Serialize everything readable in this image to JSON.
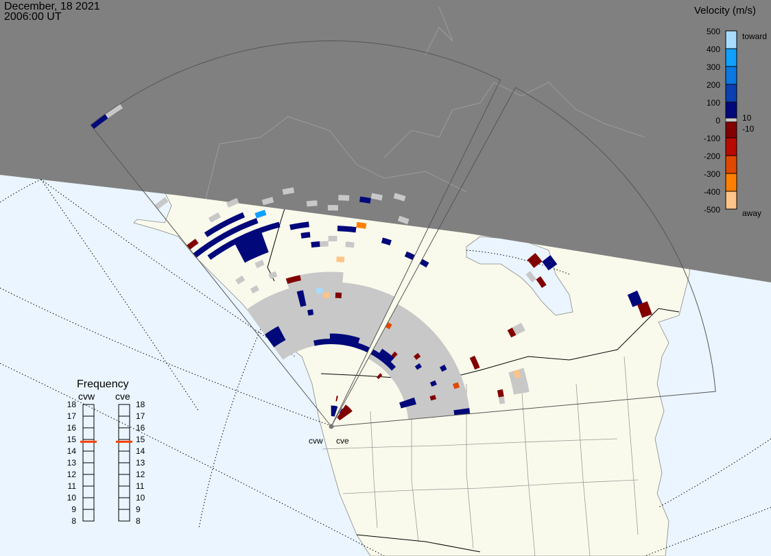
{
  "header": {
    "date": "December, 18 2021",
    "time": "2006:00 UT"
  },
  "colors": {
    "night": "#808080",
    "land": "#fafaec",
    "ocean": "#eaf5ff",
    "ground_scatter": "#c8c8c8",
    "frequency_marker": "#ff4000"
  },
  "legend": {
    "title": "Velocity (m/s)",
    "ticks": [
      "500",
      "400",
      "300",
      "200",
      "100",
      "0",
      "-100",
      "-200",
      "-300",
      "-400",
      "-500"
    ],
    "toward_label": "toward",
    "away_label": "away",
    "plus_threshold": "10",
    "minus_threshold": "-10",
    "bands": [
      {
        "min": 400,
        "max": 500,
        "color": "#a8dcff"
      },
      {
        "min": 300,
        "max": 400,
        "color": "#10a0ff"
      },
      {
        "min": 200,
        "max": 300,
        "color": "#0a78e0"
      },
      {
        "min": 100,
        "max": 200,
        "color": "#0a40b0"
      },
      {
        "min": 10,
        "max": 100,
        "color": "#00087a"
      },
      {
        "min": -100,
        "max": -10,
        "color": "#820000"
      },
      {
        "min": -200,
        "max": -100,
        "color": "#b80a00"
      },
      {
        "min": -300,
        "max": -200,
        "color": "#e04800"
      },
      {
        "min": -400,
        "max": -300,
        "color": "#ff8000"
      },
      {
        "min": -500,
        "max": -400,
        "color": "#ffc488"
      }
    ]
  },
  "frequency": {
    "title": "Frequency",
    "unit_ticks": [
      "18",
      "17",
      "16",
      "15",
      "14",
      "13",
      "12",
      "11",
      "10",
      "9",
      "8"
    ],
    "radars": [
      {
        "name": "cvw",
        "value_mhz": 14.8
      },
      {
        "name": "cve",
        "value_mhz": 14.8
      }
    ]
  },
  "sites": [
    {
      "name": "cvw"
    },
    {
      "name": "cve"
    }
  ],
  "ground_scatter_regions": [
    {
      "radar": "cvw",
      "beams": [
        1,
        23
      ],
      "gates": [
        16,
        27
      ]
    },
    {
      "radar": "cvw",
      "beams": [
        8,
        15
      ],
      "gates": [
        27,
        29
      ]
    },
    {
      "radar": "cve",
      "beams": [
        0,
        23
      ],
      "gates": [
        15,
        26
      ]
    },
    {
      "radar": "cve",
      "beams": [
        14,
        14
      ],
      "gates": [
        40,
        41
      ]
    },
    {
      "radar": "cve",
      "beams": [
        19,
        21
      ],
      "gates": [
        36,
        38
      ]
    }
  ],
  "ground_scatter_cells": [
    [
      "cvw",
      3,
      46
    ],
    [
      "cvw",
      5,
      47
    ],
    [
      "cvw",
      8,
      45
    ],
    [
      "cvw",
      10,
      46
    ],
    [
      "cvw",
      12,
      43
    ],
    [
      "cvw",
      14,
      42
    ],
    [
      "cvw",
      15,
      44
    ],
    [
      "cvw",
      18,
      45
    ],
    [
      "cvw",
      20,
      46
    ],
    [
      "cvw",
      21,
      42
    ],
    [
      "cvw",
      0,
      54
    ],
    [
      "cvw",
      2,
      33
    ],
    [
      "cvw",
      3,
      30
    ],
    [
      "cvw",
      5,
      34
    ],
    [
      "cvw",
      6,
      31
    ],
    [
      "cvw",
      13,
      35
    ],
    [
      "cvw",
      14,
      36
    ],
    [
      "cvw",
      16,
      35
    ],
    [
      "cvw",
      1,
      74
    ],
    [
      "cve",
      22,
      33
    ],
    [
      "cve",
      10,
      48
    ]
  ],
  "ionospheric_scatter": [
    {
      "radar": "cvw",
      "beams": [
        1,
        8
      ],
      "gates": [
        40,
        40
      ],
      "velocity": 60
    },
    {
      "radar": "cvw",
      "beams": [
        0,
        6
      ],
      "gates": [
        42,
        42
      ],
      "velocity": 50
    },
    {
      "radar": "cvw",
      "beams": [
        2,
        5
      ],
      "gates": [
        44,
        44
      ],
      "velocity": 40
    },
    {
      "radar": "cvw",
      "beams": [
        4,
        6
      ],
      "gates": [
        36,
        39
      ],
      "velocity": 80
    },
    {
      "radar": "cvw",
      "beams": [
        7,
        7
      ],
      "gates": [
        43,
        43
      ],
      "velocity": 360
    },
    {
      "radar": "cvw",
      "beams": [
        0,
        0
      ],
      "gates": [
        44,
        44
      ],
      "velocity": -60
    },
    {
      "radar": "cvw",
      "beams": [
        0,
        0
      ],
      "gates": [
        74,
        74
      ],
      "velocity": 60
    },
    {
      "radar": "cvw",
      "beams": [
        10,
        11
      ],
      "gates": [
        39,
        39
      ],
      "velocity": 50
    },
    {
      "radar": "cvw",
      "beams": [
        11,
        11
      ],
      "gates": [
        37,
        37
      ],
      "velocity": 50
    },
    {
      "radar": "cvw",
      "beams": [
        12,
        12
      ],
      "gates": [
        35,
        35
      ],
      "velocity": 40
    },
    {
      "radar": "cvw",
      "beams": [
        17,
        17
      ],
      "gates": [
        44,
        44
      ],
      "velocity": 70
    },
    {
      "radar": "cvw",
      "beams": [
        17,
        17
      ],
      "gates": [
        39,
        39
      ],
      "velocity": -350
    },
    {
      "radar": "cvw",
      "beams": [
        15,
        16
      ],
      "gates": [
        38,
        38
      ],
      "velocity": 50
    },
    {
      "radar": "cvw",
      "beams": [
        20,
        20
      ],
      "gates": [
        37,
        37
      ],
      "velocity": 60
    },
    {
      "radar": "cvw",
      "beams": [
        15,
        15
      ],
      "gates": [
        32,
        32
      ],
      "velocity": -470
    },
    {
      "radar": "cvw",
      "beams": [
        23,
        23
      ],
      "gates": [
        36,
        36
      ],
      "velocity": 70
    },
    {
      "radar": "cvw",
      "beams": [
        8,
        9
      ],
      "gates": [
        29,
        29
      ],
      "velocity": -80
    },
    {
      "radar": "cvw",
      "beams": [
        12,
        12
      ],
      "gates": [
        26,
        26
      ],
      "velocity": 420
    },
    {
      "radar": "cvw",
      "beams": [
        13,
        13
      ],
      "gates": [
        25,
        25
      ],
      "velocity": -480
    },
    {
      "radar": "cvw",
      "beams": [
        15,
        15
      ],
      "gates": [
        25,
        25
      ],
      "velocity": -70
    },
    {
      "radar": "cvw",
      "beams": [
        9,
        9
      ],
      "gates": [
        24,
        26
      ],
      "velocity": 60
    },
    {
      "radar": "cvw",
      "beams": [
        10,
        10
      ],
      "gates": [
        22,
        22
      ],
      "velocity": 60
    },
    {
      "radar": "cvw",
      "beams": [
        1,
        3
      ],
      "gates": [
        19,
        21
      ],
      "velocity": 50
    },
    {
      "radar": "cvw",
      "beams": [
        10,
        23
      ],
      "gates": [
        16,
        16
      ],
      "velocity": 70
    },
    {
      "radar": "cvw",
      "beams": [
        14,
        20
      ],
      "gates": [
        17,
        17
      ],
      "velocity": 60
    },
    {
      "radar": "cvw",
      "beams": [
        14,
        20
      ],
      "gates": [
        2,
        3
      ],
      "velocity": 80
    },
    {
      "radar": "cvw",
      "beams": [
        18,
        18
      ],
      "gates": [
        5,
        5
      ],
      "velocity": -60
    },
    {
      "radar": "cve",
      "beams": [
        0,
        0
      ],
      "gates": [
        36,
        36
      ],
      "velocity": 60
    },
    {
      "radar": "cve",
      "beams": [
        9,
        9
      ],
      "gates": [
        50,
        51
      ],
      "velocity": -90
    },
    {
      "radar": "cve",
      "beams": [
        10,
        10
      ],
      "gates": [
        52,
        53
      ],
      "velocity": 60
    },
    {
      "radar": "cve",
      "beams": [
        11,
        11
      ],
      "gates": [
        49,
        49
      ],
      "velocity": -80
    },
    {
      "radar": "cve",
      "beams": [
        14,
        14
      ],
      "gates": [
        39,
        39
      ],
      "velocity": -90
    },
    {
      "radar": "cve",
      "beams": [
        16,
        16
      ],
      "gates": [
        63,
        64
      ],
      "velocity": 60
    },
    {
      "radar": "cve",
      "beams": [
        17,
        17
      ],
      "gates": [
        64,
        65
      ],
      "velocity": -90
    },
    {
      "radar": "cve",
      "beams": [
        15,
        16
      ],
      "gates": [
        30,
        30
      ],
      "velocity": -80
    },
    {
      "radar": "cve",
      "beams": [
        19,
        19
      ],
      "gates": [
        37,
        37
      ],
      "velocity": -470
    },
    {
      "radar": "cve",
      "beams": [
        21,
        21
      ],
      "gates": [
        33,
        33
      ],
      "velocity": -70
    },
    {
      "radar": "cve",
      "beams": [
        18,
        18
      ],
      "gates": [
        25,
        25
      ],
      "velocity": -250
    },
    {
      "radar": "cve",
      "beams": [
        19,
        19
      ],
      "gates": [
        20,
        20
      ],
      "velocity": -70
    },
    {
      "radar": "cve",
      "beams": [
        18,
        19
      ],
      "gates": [
        14,
        16
      ],
      "velocity": 60
    },
    {
      "radar": "cve",
      "beams": [
        9,
        9
      ],
      "gates": [
        21,
        21
      ],
      "velocity": -80
    },
    {
      "radar": "cve",
      "beams": [
        6,
        6
      ],
      "gates": [
        13,
        13
      ],
      "velocity": -80
    },
    {
      "radar": "cve",
      "beams": [
        5,
        5
      ],
      "gates": [
        18,
        18
      ],
      "velocity": -70
    },
    {
      "radar": "cve",
      "beams": [
        14,
        14
      ],
      "gates": [
        24,
        24
      ],
      "velocity": 60
    },
    {
      "radar": "cve",
      "beams": [
        23,
        23
      ],
      "gates": [
        24,
        26
      ],
      "velocity": 70
    },
    {
      "radar": "cve",
      "beams": [
        0,
        7
      ],
      "gates": [
        16,
        16
      ],
      "velocity": 60
    },
    {
      "radar": "cve",
      "beams": [
        2,
        5
      ],
      "gates": [
        17,
        17
      ],
      "velocity": 50
    },
    {
      "radar": "cve",
      "beams": [
        11,
        11
      ],
      "gates": [
        20,
        20
      ],
      "velocity": 60
    },
    {
      "radar": "cve",
      "beams": [
        16,
        16
      ],
      "gates": [
        21,
        21
      ],
      "velocity": 60
    },
    {
      "radar": "cve",
      "beams": [
        0,
        0
      ],
      "gates": [
        22,
        22
      ],
      "velocity": -260
    },
    {
      "radar": "cve",
      "beams": [
        2,
        10
      ],
      "gates": [
        2,
        4
      ],
      "velocity": -70
    },
    {
      "radar": "cve",
      "beams": [
        1,
        1
      ],
      "gates": [
        3,
        3
      ],
      "velocity": 70
    }
  ]
}
